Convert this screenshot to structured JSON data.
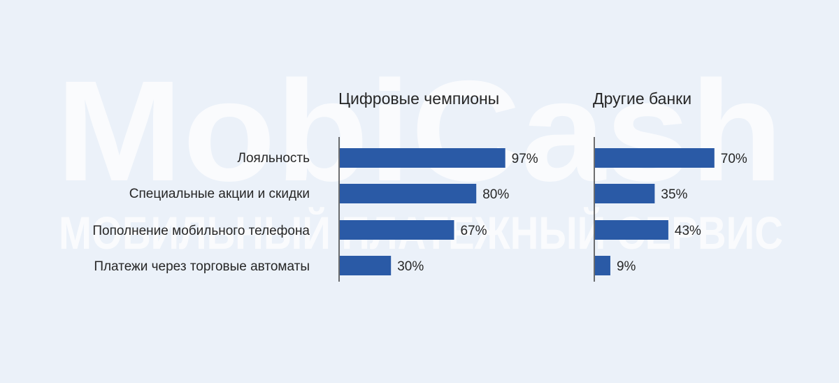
{
  "watermark": {
    "logo_text": "MobiCash",
    "tagline": "МОБИЛЬНЫЙ ПЛАТЕЖНЫЙ СЕРВИС"
  },
  "colors": {
    "background": "#ebf1f9",
    "bar": "#2a5aa6",
    "text": "#262626",
    "axis": "#333333",
    "watermark": "#ffffff"
  },
  "chart_data": [
    {
      "type": "bar",
      "orientation": "horizontal",
      "title": "Цифровые чемпионы",
      "categories": [
        "Лояльность",
        "Специальные акции и скидки",
        "Пополнение мобильного телефона",
        "Платежи через торговые автоматы"
      ],
      "values": [
        97,
        80,
        67,
        30
      ],
      "value_labels": [
        "97%",
        "80%",
        "67%",
        "30%"
      ],
      "unit": "%",
      "xlim": [
        0,
        100
      ],
      "grid": false
    },
    {
      "type": "bar",
      "orientation": "horizontal",
      "title": "Другие банки",
      "categories": [
        "Лояльность",
        "Специальные акции и скидки",
        "Пополнение мобильного телефона",
        "Платежи через торговые автоматы"
      ],
      "values": [
        70,
        35,
        43,
        9
      ],
      "value_labels": [
        "70%",
        "35%",
        "43%",
        "9%"
      ],
      "unit": "%",
      "xlim": [
        0,
        100
      ],
      "grid": false
    }
  ]
}
